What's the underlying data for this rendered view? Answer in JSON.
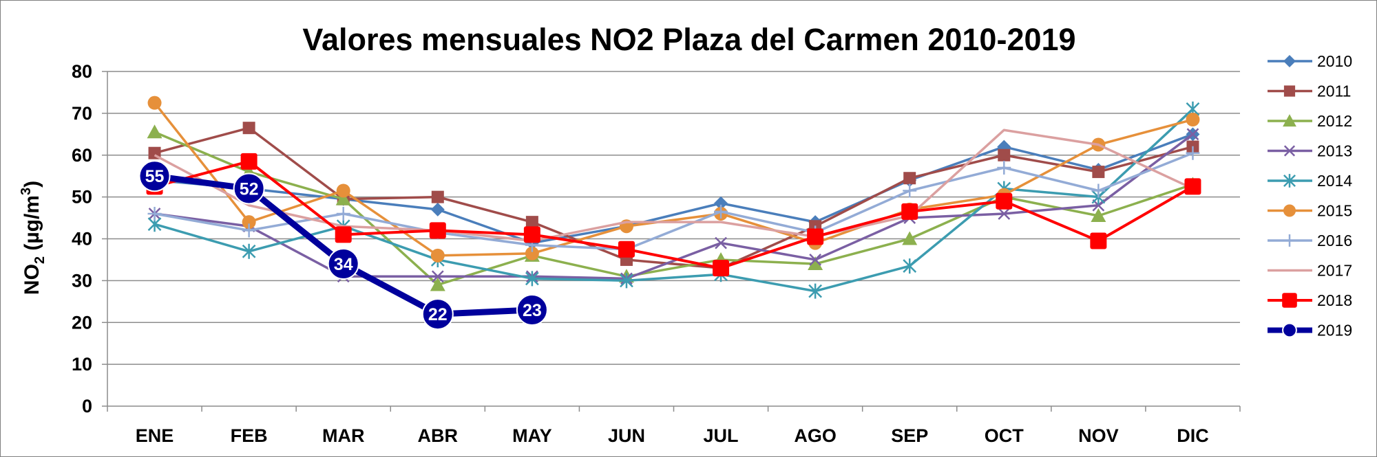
{
  "chart_data": {
    "type": "line",
    "title": "Valores mensuales NO2 Plaza del Carmen 2010-2019",
    "ylabel": "NO2 (µg/m3)",
    "ylabel_parts": {
      "main": "NO",
      "sub": "2",
      "mid": " (µg/m",
      "sup": "3",
      "end": ")"
    },
    "xlabel": "",
    "categories": [
      "ENE",
      "FEB",
      "MAR",
      "ABR",
      "MAY",
      "JUN",
      "JUL",
      "AGO",
      "SEP",
      "OCT",
      "NOV",
      "DIC"
    ],
    "ylim": [
      0,
      80
    ],
    "yticks": [
      0,
      10,
      20,
      30,
      40,
      50,
      60,
      70,
      80
    ],
    "grid": true,
    "legend_position": "right",
    "series": [
      {
        "name": "2010",
        "color": "#4a7ebb",
        "marker": "diamond",
        "values": [
          54,
          52,
          49.5,
          47,
          39,
          43,
          48.5,
          44,
          54,
          62,
          56.5,
          65
        ]
      },
      {
        "name": "2011",
        "color": "#a04c4a",
        "marker": "square",
        "values": [
          60.5,
          66.5,
          49.5,
          50,
          44,
          35,
          33,
          43,
          54.5,
          60,
          56,
          62
        ]
      },
      {
        "name": "2012",
        "color": "#8cb04e",
        "marker": "triangle",
        "values": [
          65.5,
          56,
          49.5,
          29,
          36,
          31,
          35,
          34,
          40,
          50,
          45.5,
          53
        ]
      },
      {
        "name": "2013",
        "color": "#7a5fa3",
        "marker": "x",
        "values": [
          46,
          43,
          31,
          31,
          31,
          30.5,
          39,
          35,
          45,
          46,
          48,
          65
        ]
      },
      {
        "name": "2014",
        "color": "#3c9cb0",
        "marker": "star",
        "values": [
          43.5,
          37,
          43,
          35,
          30.5,
          30,
          31.5,
          27.5,
          33.5,
          52,
          50,
          71
        ]
      },
      {
        "name": "2015",
        "color": "#e6903a",
        "marker": "circle",
        "values": [
          72.5,
          44,
          51.5,
          36,
          36.5,
          43,
          46,
          39,
          47,
          50.5,
          62.5,
          68.5
        ]
      },
      {
        "name": "2016",
        "color": "#93abd6",
        "marker": "plus",
        "values": [
          46,
          42,
          46,
          41.5,
          38.5,
          37.5,
          46.5,
          41.5,
          51.5,
          57,
          51.5,
          60.5
        ]
      },
      {
        "name": "2017",
        "color": "#dba0a0",
        "marker": "none",
        "values": [
          60,
          48,
          43,
          42,
          39.5,
          44,
          44,
          40.5,
          45.5,
          66,
          62.5,
          52
        ]
      },
      {
        "name": "2018",
        "color": "#ff0000",
        "marker": "bigsquare",
        "values": [
          52.5,
          58.5,
          41,
          42,
          41,
          37.5,
          33,
          40.5,
          46.5,
          49,
          39.5,
          52.5
        ]
      },
      {
        "name": "2019",
        "color": "#00009c",
        "marker": "bigcircle",
        "labels": true,
        "values": [
          55,
          52,
          34,
          22,
          23,
          null,
          null,
          null,
          null,
          null,
          null,
          null
        ]
      }
    ]
  }
}
